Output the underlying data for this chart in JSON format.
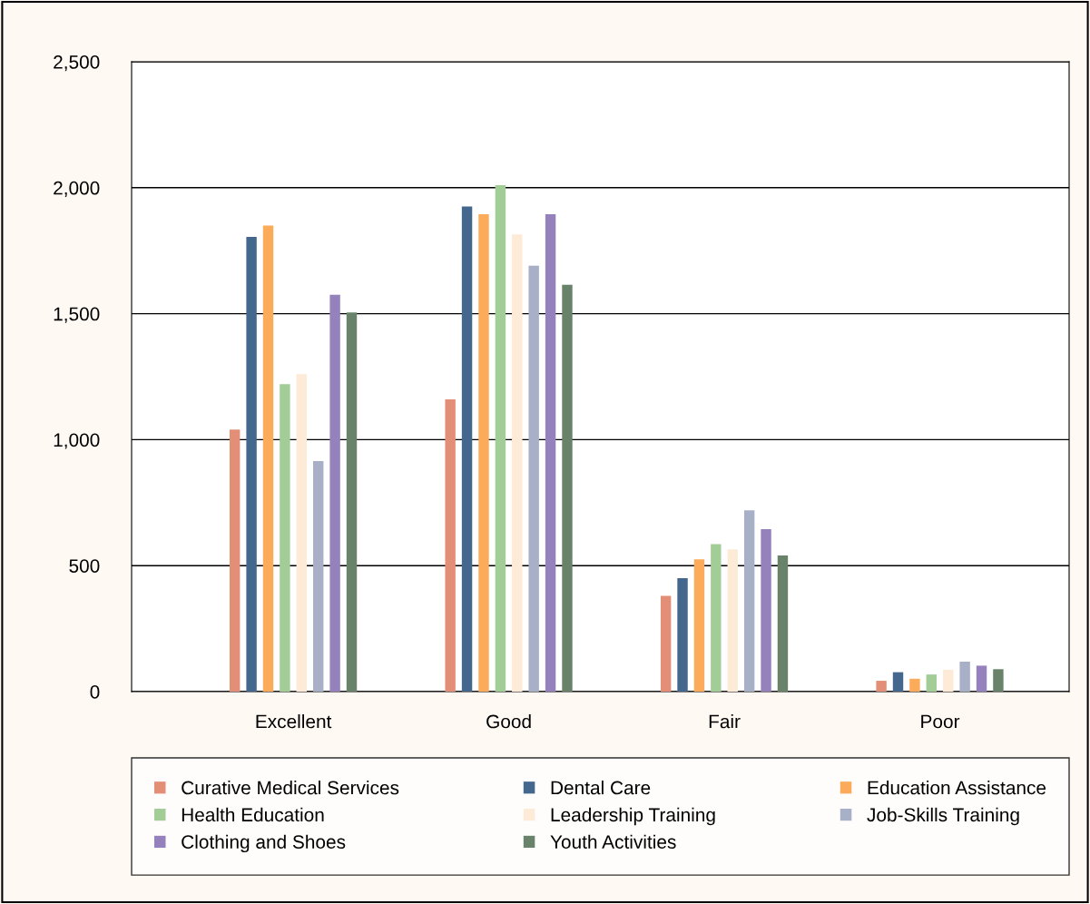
{
  "chart_data": {
    "type": "bar",
    "categories": [
      "Excellent",
      "Good",
      "Fair",
      "Poor"
    ],
    "series": [
      {
        "name": "Curative Medical Services",
        "color": "#e38f77",
        "values": [
          1040,
          1160,
          380,
          43
        ]
      },
      {
        "name": "Dental Care",
        "color": "#44678e",
        "values": [
          1805,
          1925,
          450,
          77
        ]
      },
      {
        "name": "Education Assistance",
        "color": "#fbab5a",
        "values": [
          1850,
          1895,
          525,
          51
        ]
      },
      {
        "name": "Health Education",
        "color": "#a3cd97",
        "values": [
          1220,
          2010,
          585,
          68
        ]
      },
      {
        "name": "Leadership Training",
        "color": "#feebd7",
        "values": [
          1260,
          1815,
          565,
          87
        ]
      },
      {
        "name": "Job-Skills Training",
        "color": "#a8b0c7",
        "values": [
          915,
          1690,
          720,
          119
        ]
      },
      {
        "name": "Clothing and Shoes",
        "color": "#9582bd",
        "values": [
          1575,
          1895,
          645,
          103
        ]
      },
      {
        "name": "Youth Activities",
        "color": "#688369",
        "values": [
          1505,
          1615,
          540,
          89
        ]
      }
    ],
    "ylim": [
      0,
      2500
    ],
    "yticks": [
      0,
      500,
      {
        "value": 1000,
        "label": "1,000"
      },
      {
        "value": 1500,
        "label": "1,500"
      },
      {
        "value": 2000,
        "label": "2,000"
      },
      {
        "value": 2500,
        "label": "2,500"
      }
    ],
    "grid": "y",
    "legend": "bottom"
  }
}
